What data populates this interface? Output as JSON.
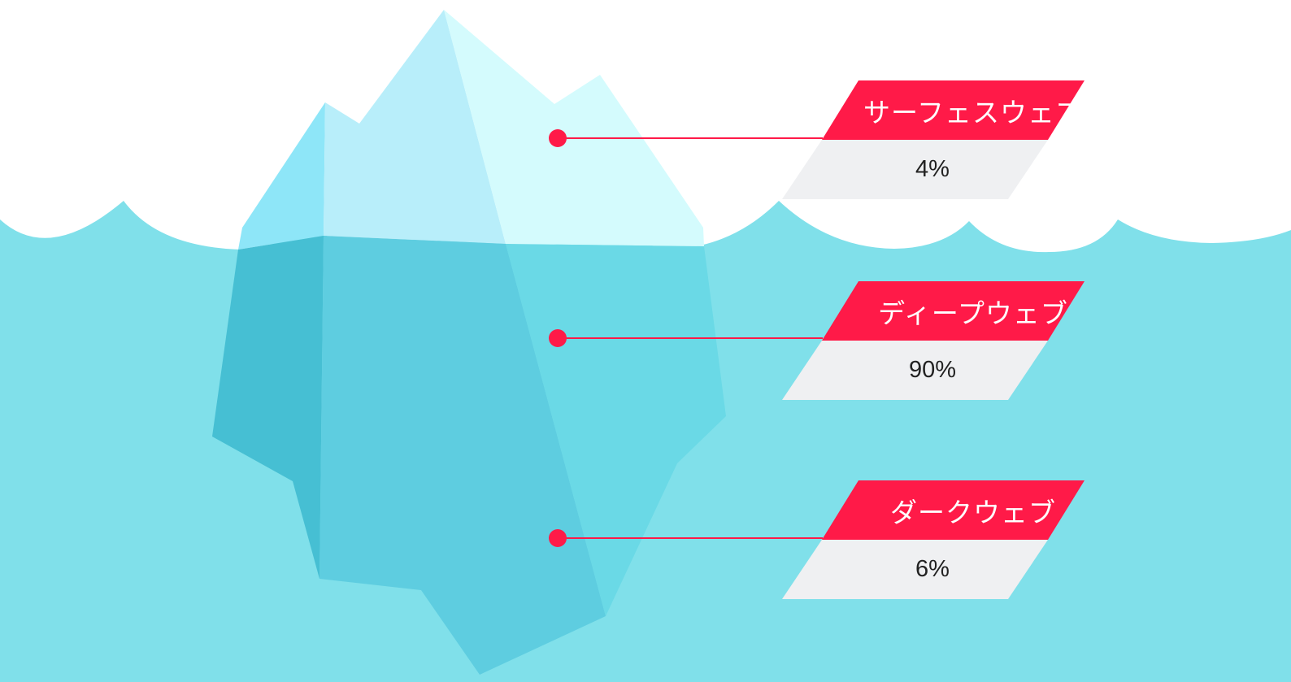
{
  "colors": {
    "sky": "#ffffff",
    "water": "#80e0ea",
    "accent": "#ff1a48",
    "value_box": "#eff0f2",
    "ice_light": "#d4fbfd",
    "ice_mid": "#b8eefa",
    "ice_left": "#8ee6f8",
    "underwater_left": "#46bfd3",
    "underwater_mid": "#5ecde0",
    "underwater_right": "#6ad9e6"
  },
  "layers": [
    {
      "name": "サーフェスウェブ",
      "value": "4%"
    },
    {
      "name": "ディープウェブ",
      "value": "90%"
    },
    {
      "name": "ダークウェブ",
      "value": "6%"
    }
  ]
}
